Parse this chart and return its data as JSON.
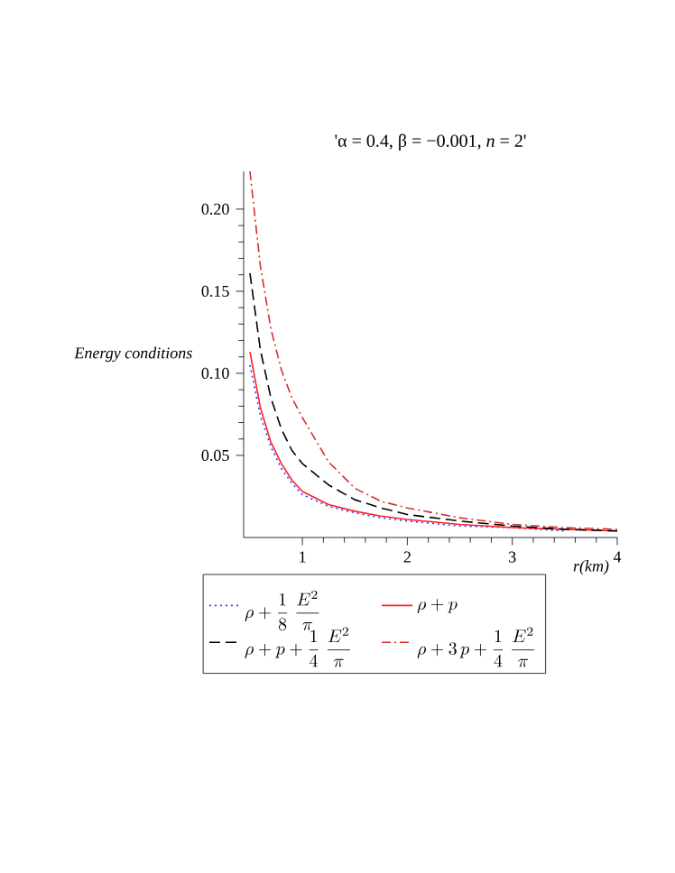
{
  "chart_data": {
    "type": "line",
    "title": "'α = 0.4, β = −0.001, *n* = 2'",
    "xlabel": "r(km)",
    "ylabel": "Energy conditions",
    "xlim": [
      0.44,
      4
    ],
    "ylim": [
      0,
      0.223
    ],
    "xticks": [
      1,
      2,
      3,
      4
    ],
    "yticks": [
      0.05,
      {
        "value": 0.1,
        "label": "0.10"
      },
      0.15,
      {
        "value": 0.2,
        "label": "0.20"
      }
    ],
    "x": [
      0.5,
      0.6,
      0.7,
      0.8,
      0.9,
      1,
      1.25,
      1.5,
      1.75,
      2,
      2.5,
      3,
      3.5,
      4
    ],
    "legend": "bottom",
    "grid": false,
    "series": [
      {
        "name": "\\rho+\\dfrac{1}{8}\\;\\dfrac{E^2}{\\pi}",
        "color": "#3333ff",
        "line_style": "dotted",
        "values": [
          0.105,
          0.074,
          0.055,
          0.042,
          0.033,
          0.026,
          0.019,
          0.015,
          0.012,
          0.01,
          0.007,
          0.006,
          0.004,
          null
        ]
      },
      {
        "name": "\\rho+p",
        "color": "#ff2020",
        "line_style": "solid",
        "values": [
          0.113,
          0.079,
          0.058,
          0.045,
          0.035,
          0.028,
          0.02,
          0.016,
          0.013,
          0.011,
          0.008,
          0.006,
          0.005,
          0.004
        ]
      },
      {
        "name": "\\rho+p+\\dfrac{1}{4}\\;\\dfrac{E^2}{\\pi}",
        "color": "#000000",
        "line_style": "dashed",
        "values": [
          0.161,
          0.114,
          0.085,
          0.066,
          0.053,
          0.045,
          0.032,
          0.023,
          0.018,
          0.014,
          0.01,
          0.007,
          0.005,
          0.004
        ]
      },
      {
        "name": "\\rho+3\\,p+\\dfrac{1}{4}\\;\\dfrac{E^2}{\\pi}",
        "color": "#d03030",
        "line_style": "dashdot",
        "values": [
          0.223,
          0.165,
          0.127,
          0.102,
          0.085,
          0.073,
          0.046,
          0.03,
          0.022,
          0.018,
          0.012,
          0.008,
          0.006,
          0.005
        ]
      }
    ]
  }
}
